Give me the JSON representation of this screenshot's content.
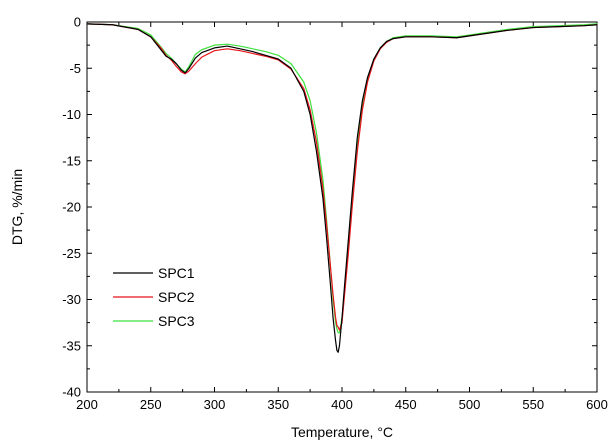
{
  "chart_data": {
    "type": "line",
    "xlabel": "Temperature, °C",
    "ylabel": "DTG, %/min",
    "xlim": [
      200,
      600
    ],
    "ylim": [
      -40,
      0
    ],
    "xticks": [
      200,
      250,
      300,
      350,
      400,
      450,
      500,
      550,
      600
    ],
    "yticks": [
      0,
      -5,
      -10,
      -15,
      -20,
      -25,
      -30,
      -35,
      -40
    ],
    "grid": false,
    "legend_position": "bottom-left",
    "series": [
      {
        "name": "SPC1",
        "color": "#000000",
        "x": [
          200,
          220,
          240,
          250,
          258,
          262,
          266,
          270,
          274,
          277,
          280,
          285,
          290,
          300,
          310,
          320,
          330,
          340,
          350,
          360,
          370,
          375,
          380,
          385,
          388,
          391,
          393,
          395,
          396,
          397,
          398,
          400,
          402,
          405,
          408,
          412,
          416,
          420,
          425,
          430,
          435,
          440,
          450,
          470,
          490,
          510,
          530,
          550,
          570,
          590,
          600
        ],
        "y": [
          -0.2,
          -0.3,
          -0.8,
          -1.6,
          -3.0,
          -3.7,
          -4.0,
          -4.5,
          -5.2,
          -5.5,
          -5.0,
          -3.9,
          -3.3,
          -2.8,
          -2.6,
          -2.9,
          -3.2,
          -3.6,
          -4.0,
          -5.0,
          -7.5,
          -10.0,
          -14.0,
          -19.0,
          -23.5,
          -28.5,
          -32.0,
          -34.5,
          -35.5,
          -35.7,
          -35.0,
          -32.0,
          -28.5,
          -23.5,
          -18.5,
          -12.5,
          -8.5,
          -6.0,
          -4.0,
          -2.8,
          -2.1,
          -1.8,
          -1.6,
          -1.6,
          -1.7,
          -1.3,
          -0.9,
          -0.6,
          -0.5,
          -0.4,
          -0.3
        ]
      },
      {
        "name": "SPC2",
        "color": "#e8141b",
        "x": [
          200,
          220,
          240,
          250,
          258,
          262,
          266,
          270,
          274,
          277,
          280,
          285,
          290,
          300,
          310,
          320,
          330,
          340,
          350,
          360,
          370,
          375,
          380,
          385,
          388,
          391,
          393,
          395,
          396,
          397,
          398,
          400,
          402,
          405,
          408,
          412,
          416,
          420,
          425,
          430,
          435,
          440,
          450,
          470,
          490,
          510,
          530,
          550,
          570,
          590,
          600
        ],
        "y": [
          -0.2,
          -0.3,
          -0.8,
          -1.6,
          -2.8,
          -3.6,
          -4.1,
          -4.8,
          -5.4,
          -5.6,
          -5.3,
          -4.5,
          -3.8,
          -3.1,
          -2.9,
          -3.1,
          -3.4,
          -3.7,
          -4.1,
          -5.1,
          -7.2,
          -9.5,
          -13.0,
          -18.0,
          -22.0,
          -26.5,
          -29.5,
          -32.0,
          -32.8,
          -33.0,
          -33.3,
          -32.5,
          -29.5,
          -25.0,
          -20.0,
          -14.0,
          -9.5,
          -6.5,
          -4.2,
          -2.9,
          -2.2,
          -1.8,
          -1.6,
          -1.6,
          -1.7,
          -1.3,
          -0.9,
          -0.6,
          -0.5,
          -0.4,
          -0.3
        ]
      },
      {
        "name": "SPC3",
        "color": "#3fe03f",
        "x": [
          200,
          220,
          240,
          250,
          258,
          262,
          266,
          270,
          274,
          277,
          280,
          285,
          290,
          300,
          310,
          320,
          330,
          340,
          350,
          360,
          370,
          375,
          380,
          385,
          388,
          391,
          393,
          395,
          396,
          397,
          398,
          400,
          402,
          405,
          408,
          412,
          416,
          420,
          425,
          430,
          435,
          440,
          450,
          470,
          490,
          510,
          530,
          550,
          570,
          590,
          600
        ],
        "y": [
          -0.2,
          -0.3,
          -0.7,
          -1.4,
          -2.7,
          -3.4,
          -3.9,
          -4.5,
          -5.1,
          -5.4,
          -4.8,
          -3.5,
          -3.0,
          -2.5,
          -2.4,
          -2.6,
          -2.9,
          -3.2,
          -3.6,
          -4.5,
          -6.5,
          -8.5,
          -12.0,
          -17.0,
          -21.5,
          -26.5,
          -30.0,
          -32.5,
          -33.2,
          -33.6,
          -33.6,
          -32.0,
          -29.0,
          -24.0,
          -19.5,
          -13.5,
          -9.0,
          -6.2,
          -4.0,
          -2.8,
          -2.1,
          -1.7,
          -1.5,
          -1.5,
          -1.6,
          -1.2,
          -0.8,
          -0.5,
          -0.4,
          -0.3,
          -0.2
        ]
      }
    ]
  }
}
